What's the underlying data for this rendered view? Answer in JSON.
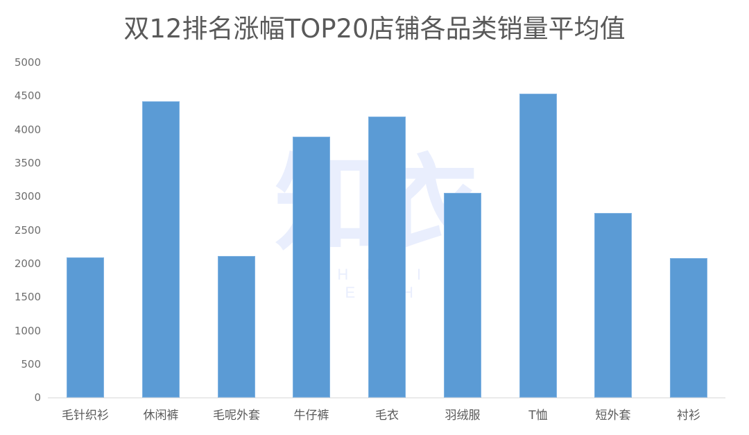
{
  "chart": {
    "title": "双12排名涨幅TOP20店铺各品类销量平均值",
    "watermark": {
      "cn": "知衣",
      "en": "ZHIYI TECH"
    },
    "bar_color": "#5b9bd5",
    "y_ticks": [
      "5000",
      "4500",
      "4000",
      "3500",
      "3000",
      "2500",
      "2000",
      "1500",
      "1000",
      "500",
      "0"
    ],
    "categories": [
      "毛针织衫",
      "休闲裤",
      "毛呢外套",
      "牛仔裤",
      "毛衣",
      "羽绒服",
      "T恤",
      "短外套",
      "衬衫"
    ]
  },
  "chart_data": {
    "type": "bar",
    "title": "双12排名涨幅TOP20店铺各品类销量平均值",
    "categories": [
      "毛针织衫",
      "休闲裤",
      "毛呢外套",
      "牛仔裤",
      "毛衣",
      "羽绒服",
      "T恤",
      "短外套",
      "衬衫"
    ],
    "values": [
      2090,
      4420,
      2110,
      3890,
      4190,
      3050,
      4530,
      2750,
      2080
    ],
    "xlabel": "",
    "ylabel": "",
    "ylim": [
      0,
      5000
    ],
    "yticks": [
      0,
      500,
      1000,
      1500,
      2000,
      2500,
      3000,
      3500,
      4000,
      4500,
      5000
    ],
    "grid": false,
    "legend": null,
    "color": "#5b9bd5",
    "watermark": "知衣 ZHIYI TECH"
  }
}
